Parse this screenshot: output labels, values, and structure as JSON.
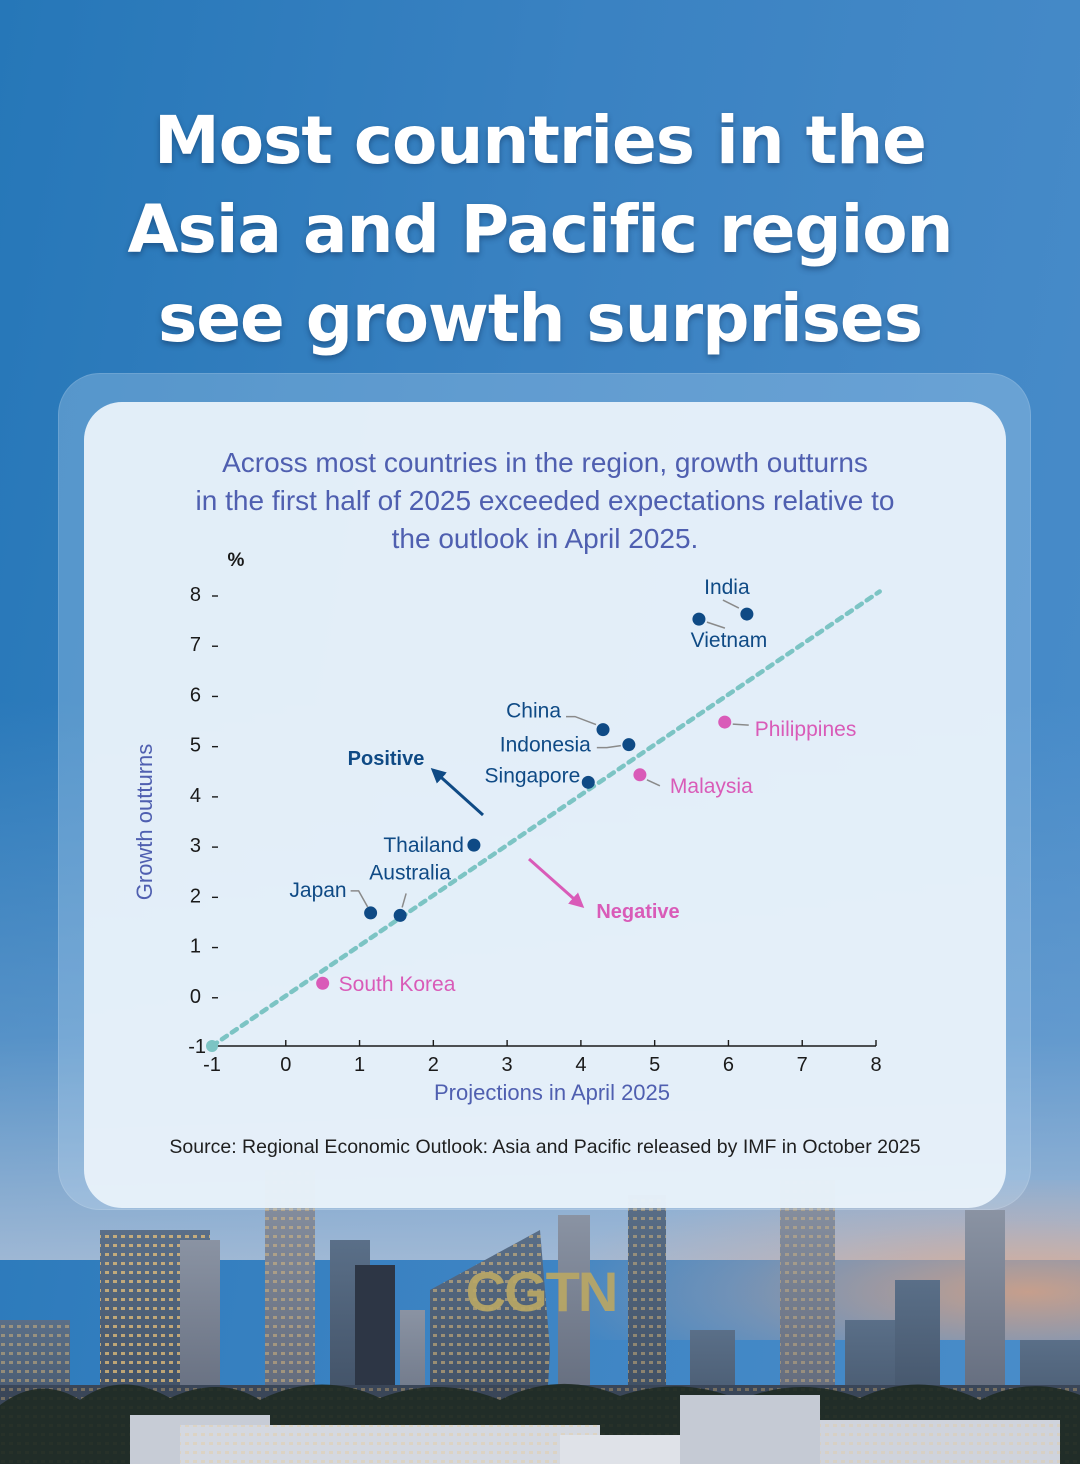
{
  "title": {
    "lines": [
      "Most countries in the",
      "Asia and Pacific region",
      "see growth surprises"
    ]
  },
  "subtitle": {
    "lines": [
      "Across most countries in the region, growth outturns",
      "in the first half of 2025 exceeded expectations relative to",
      "the outlook in April 2025."
    ]
  },
  "source": "Source: Regional Economic Outlook: Asia and Pacific released by IMF in October 2025",
  "logo": "CGTN",
  "colors": {
    "positive": "#0f4a85",
    "negative": "#d95bb8",
    "reference_line": "#7cc4c4",
    "axis_label": "#4f5fb0",
    "axis": "#1a1a1a",
    "leader": "#8a8a8a"
  },
  "chart_data": {
    "type": "scatter",
    "title": "Across most countries in the region, growth outturns in the first half of 2025 exceeded expectations relative to the outlook in April 2025.",
    "xlabel": "Projections in April 2025",
    "ylabel": "Growth outturns",
    "yunit": "%",
    "xlim": [
      -1,
      8
    ],
    "ylim": [
      -1,
      8
    ],
    "xticks": [
      -1,
      0,
      1,
      2,
      3,
      4,
      5,
      6,
      7,
      8
    ],
    "yticks": [
      -1,
      0,
      1,
      2,
      3,
      4,
      5,
      6,
      7,
      8
    ],
    "grid": false,
    "reference_line": {
      "type": "45-degree",
      "from": [
        -1,
        -1
      ],
      "to": [
        8.05,
        8.05
      ],
      "style": "dotted"
    },
    "annotations": [
      {
        "text": "Positive",
        "side": "above line",
        "color": "#0f4a85"
      },
      {
        "text": "Negative",
        "side": "below line",
        "color": "#d95bb8"
      }
    ],
    "series": [
      {
        "name": "Positive",
        "color": "#0f4a85",
        "points": [
          {
            "label": "India",
            "x": 6.25,
            "y": 7.6
          },
          {
            "label": "Vietnam",
            "x": 5.6,
            "y": 7.5
          },
          {
            "label": "China",
            "x": 4.3,
            "y": 5.3
          },
          {
            "label": "Indonesia",
            "x": 4.65,
            "y": 5.0
          },
          {
            "label": "Singapore",
            "x": 4.1,
            "y": 4.25
          },
          {
            "label": "Thailand",
            "x": 2.55,
            "y": 3.0
          },
          {
            "label": "Japan",
            "x": 1.15,
            "y": 1.65
          },
          {
            "label": "Australia",
            "x": 1.55,
            "y": 1.6
          }
        ]
      },
      {
        "name": "Negative",
        "color": "#d95bb8",
        "points": [
          {
            "label": "Philippines",
            "x": 5.95,
            "y": 5.45
          },
          {
            "label": "Malaysia",
            "x": 4.8,
            "y": 4.4
          },
          {
            "label": "South Korea",
            "x": 0.5,
            "y": 0.25
          }
        ]
      }
    ]
  },
  "label_layout": {
    "India": {
      "dx": -20,
      "dy": -20,
      "anchor": "middle",
      "leader": [
        [
          -8,
          -6
        ],
        [
          -24,
          -14
        ]
      ]
    },
    "Vietnam": {
      "dx": 30,
      "dy": 28,
      "anchor": "middle",
      "leader": [
        [
          8,
          3
        ],
        [
          26,
          9
        ]
      ]
    },
    "China": {
      "dx": -42,
      "dy": -12,
      "anchor": "end",
      "leader": [
        [
          -7,
          -5
        ],
        [
          -28,
          -13
        ],
        [
          -37,
          -13
        ]
      ]
    },
    "Indonesia": {
      "dx": -38,
      "dy": 7,
      "anchor": "end",
      "leader": [
        [
          -8,
          1
        ],
        [
          -22,
          3
        ],
        [
          -32,
          3
        ]
      ]
    },
    "Singapore": {
      "dx": -8,
      "dy": 0,
      "anchor": "end",
      "leader": null
    },
    "Thailand": {
      "dx": -10,
      "dy": 7,
      "anchor": "end",
      "leader": null
    },
    "Japan": {
      "dx": -24,
      "dy": -16,
      "anchor": "end",
      "leader": [
        [
          -3,
          -6
        ],
        [
          -12,
          -22
        ],
        [
          -20,
          -22
        ]
      ]
    },
    "Australia": {
      "dx": 10,
      "dy": -36,
      "anchor": "middle",
      "leader": [
        [
          2,
          -8
        ],
        [
          6,
          -22
        ]
      ]
    },
    "Philippines": {
      "dx": 30,
      "dy": 14,
      "anchor": "start",
      "leader": [
        [
          8,
          2
        ],
        [
          24,
          3
        ]
      ]
    },
    "Malaysia": {
      "dx": 30,
      "dy": 18,
      "anchor": "start",
      "leader": [
        [
          7,
          5
        ],
        [
          20,
          11
        ]
      ]
    },
    "South Korea": {
      "dx": 16,
      "dy": 8,
      "anchor": "start",
      "leader": null
    }
  }
}
